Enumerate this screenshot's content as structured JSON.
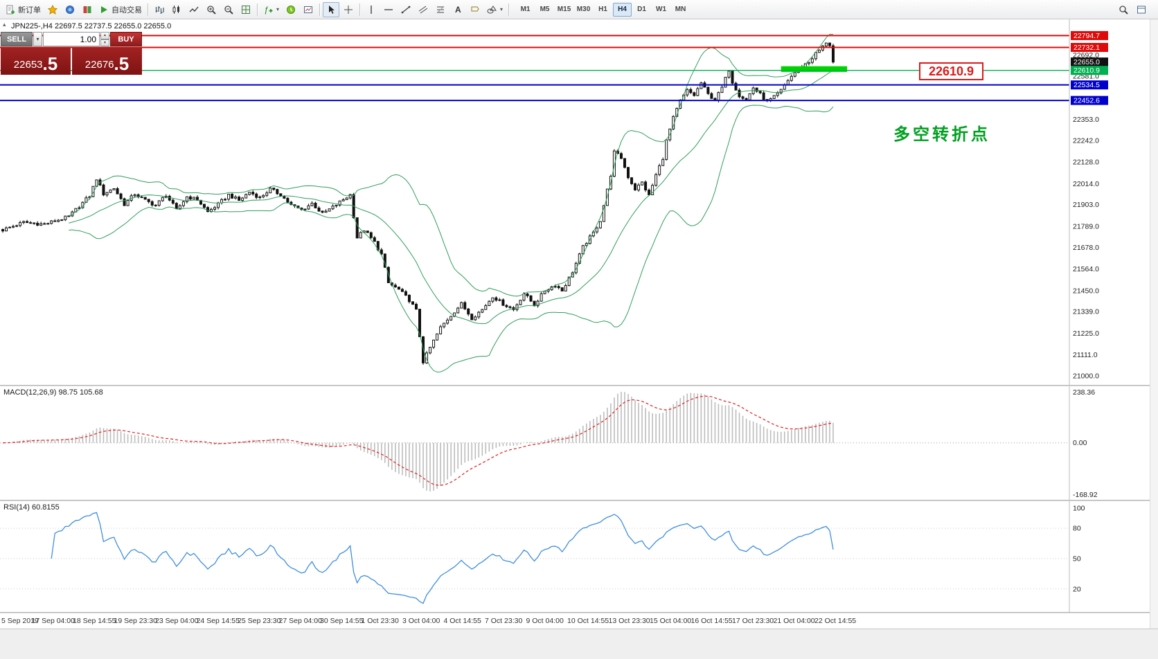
{
  "glyphs": {
    "down_arrow": "▾",
    "up_arrow": "▴",
    "collapse": "▴"
  },
  "toolbar": {
    "new_order_label": "新订单",
    "auto_trading_label": "自动交易",
    "timeframes": [
      "M1",
      "M5",
      "M15",
      "M30",
      "H1",
      "H4",
      "D1",
      "W1",
      "MN"
    ],
    "active_timeframe": "H4"
  },
  "trade_panel": {
    "sell_label": "SELL",
    "buy_label": "BUY",
    "volume": "1.00",
    "sell_price_big": "22653",
    "sell_price_pips": ".5",
    "buy_price_big": "22676",
    "buy_price_pips": ".5"
  },
  "chart_data": {
    "type": "candlestick",
    "symbol": "JPN225-",
    "timeframe": "H4",
    "header": "JPN225-,H4 22697.5 22737.5 22655.0 22655.0",
    "ohlc": {
      "open": 22697.5,
      "high": 22737.5,
      "low": 22655.0,
      "close": 22655.0
    },
    "last_close": 22655.0,
    "y_range": [
      20953,
      22880
    ],
    "y_ticks": [
      22692.0,
      22581.0,
      22353.0,
      22242.0,
      22128.0,
      22014.0,
      21903.0,
      21789.0,
      21678.0,
      21564.0,
      21450.0,
      21339.0,
      21225.0,
      21111.0,
      21000.0
    ],
    "levels": [
      {
        "price": 22794.7,
        "label": "22794.7",
        "color": "#dd0b0b",
        "line": true
      },
      {
        "price": 22732.1,
        "label": "22732.1",
        "color": "#dd0b0b",
        "line": true
      },
      {
        "price": 22655.0,
        "label": "22655.0",
        "color": "#111111",
        "line": false
      },
      {
        "price": 22610.9,
        "label": "22610.9",
        "color": "#00b050",
        "line": true
      },
      {
        "price": 22534.5,
        "label": "22534.5",
        "color": "#0000cc",
        "line": true
      },
      {
        "price": 22452.6,
        "label": "22452.6",
        "color": "#0000cc",
        "line": true
      }
    ],
    "candle_count": 240,
    "price_path": [
      [
        0,
        21770
      ],
      [
        6,
        21810
      ],
      [
        12,
        21800
      ],
      [
        19,
        21840
      ],
      [
        25,
        21950
      ],
      [
        27,
        22040
      ],
      [
        29,
        21960
      ],
      [
        32,
        21990
      ],
      [
        35,
        21905
      ],
      [
        38,
        21960
      ],
      [
        41,
        21925
      ],
      [
        44,
        21900
      ],
      [
        47,
        21955
      ],
      [
        50,
        21875
      ],
      [
        53,
        21945
      ],
      [
        56,
        21930
      ],
      [
        59,
        21865
      ],
      [
        62,
        21905
      ],
      [
        65,
        21955
      ],
      [
        68,
        21925
      ],
      [
        71,
        21970
      ],
      [
        74,
        21940
      ],
      [
        77,
        21985
      ],
      [
        80,
        21955
      ],
      [
        83,
        21900
      ],
      [
        86,
        21875
      ],
      [
        89,
        21910
      ],
      [
        92,
        21855
      ],
      [
        95,
        21890
      ],
      [
        98,
        21930
      ],
      [
        100,
        21955
      ],
      [
        102,
        21730
      ],
      [
        104,
        21770
      ],
      [
        107,
        21705
      ],
      [
        109,
        21640
      ],
      [
        111,
        21490
      ],
      [
        114,
        21455
      ],
      [
        117,
        21400
      ],
      [
        119,
        21345
      ],
      [
        121,
        21075
      ],
      [
        123,
        21150
      ],
      [
        126,
        21255
      ],
      [
        129,
        21320
      ],
      [
        132,
        21380
      ],
      [
        135,
        21305
      ],
      [
        138,
        21350
      ],
      [
        141,
        21420
      ],
      [
        144,
        21380
      ],
      [
        147,
        21350
      ],
      [
        150,
        21435
      ],
      [
        153,
        21375
      ],
      [
        156,
        21450
      ],
      [
        159,
        21480
      ],
      [
        161,
        21450
      ],
      [
        164,
        21550
      ],
      [
        167,
        21680
      ],
      [
        170,
        21755
      ],
      [
        172,
        21820
      ],
      [
        175,
        22060
      ],
      [
        176,
        22180
      ],
      [
        178,
        22150
      ],
      [
        180,
        22050
      ],
      [
        182,
        21985
      ],
      [
        184,
        22020
      ],
      [
        186,
        21950
      ],
      [
        188,
        22060
      ],
      [
        190,
        22150
      ],
      [
        191,
        22240
      ],
      [
        193,
        22360
      ],
      [
        195,
        22450
      ],
      [
        197,
        22505
      ],
      [
        199,
        22480
      ],
      [
        201,
        22545
      ],
      [
        203,
        22485
      ],
      [
        205,
        22455
      ],
      [
        207,
        22520
      ],
      [
        209,
        22615
      ],
      [
        210,
        22550
      ],
      [
        212,
        22480
      ],
      [
        214,
        22455
      ],
      [
        216,
        22520
      ],
      [
        218,
        22485
      ],
      [
        220,
        22445
      ],
      [
        222,
        22470
      ],
      [
        224,
        22505
      ],
      [
        226,
        22560
      ],
      [
        228,
        22600
      ],
      [
        230,
        22635
      ],
      [
        232,
        22655
      ],
      [
        234,
        22700
      ],
      [
        236,
        22735
      ],
      [
        237,
        22760
      ],
      [
        238,
        22745
      ],
      [
        239,
        22655
      ]
    ],
    "bollinger": {
      "period": 20,
      "deviation": 2,
      "color": "#2e9e5b"
    },
    "x_labels": [
      "5 Sep 2019",
      "17 Sep 04:00",
      "18 Sep 14:55",
      "19 Sep 23:30",
      "23 Sep 04:00",
      "24 Sep 14:55",
      "25 Sep 23:30",
      "27 Sep 04:00",
      "30 Sep 14:55",
      "1 Oct 23:30",
      "3 Oct 04:00",
      "4 Oct 14:55",
      "7 Oct 23:30",
      "9 Oct 04:00",
      "10 Oct 14:55",
      "13 Oct 23:30",
      "15 Oct 04:00",
      "16 Oct 14:55",
      "17 Oct 23:30",
      "21 Oct 04:00",
      "22 Oct 14:55"
    ],
    "macd": {
      "label": "MACD(12,26,9) 98.75 105.68",
      "fast": 12,
      "slow": 26,
      "signal": 9,
      "scale_labels": [
        "238.36",
        "0.00",
        "-168.92"
      ],
      "hist_color": "#bcbcbc",
      "signal_color": "#e02020"
    },
    "rsi": {
      "label": "RSI(14) 60.8155",
      "period": 14,
      "line_color": "#3e8ede",
      "scale_labels": [
        "100",
        "80",
        "50",
        "20"
      ],
      "levels": [
        80,
        50,
        20
      ]
    },
    "annotations": {
      "price_label": "22610.9",
      "note": "多空转折点",
      "support_zone": {
        "from_price": 22633,
        "to_price": 22603,
        "color": "#00d400"
      }
    }
  }
}
